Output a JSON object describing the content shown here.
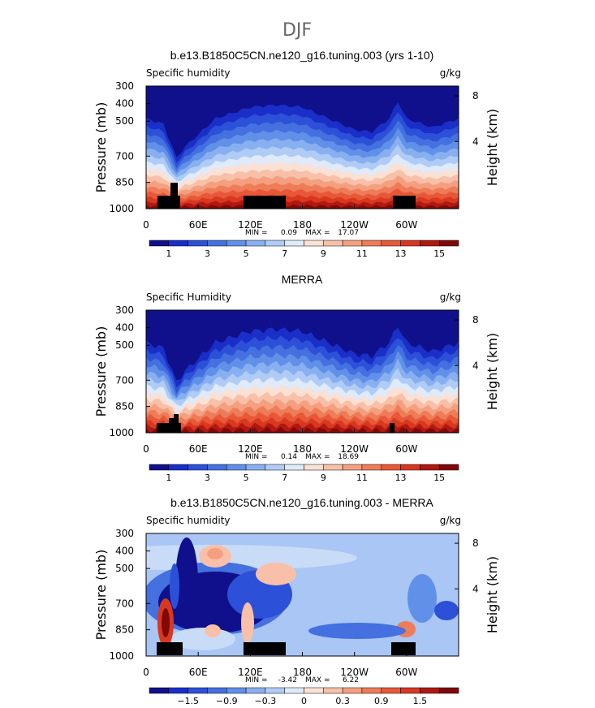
{
  "title": "DJF",
  "chart_data": [
    {
      "type": "contour",
      "title": "b.e13.B1850C5CN.ne120_g16.tuning.003 (yrs 1-10)",
      "left_label": "Specific humidity",
      "right_label": "g/kg",
      "y_label": "Pressure (mb)",
      "y2_label": "Height (km)",
      "xlim": [
        0,
        360
      ],
      "xticks": [
        0,
        {
          "value": 60,
          "label": "60E"
        },
        {
          "value": 120,
          "label": "120E"
        },
        180,
        {
          "value": 240,
          "label": "120W"
        },
        {
          "value": 300,
          "label": "60W"
        }
      ],
      "ylim": [
        1000,
        300
      ],
      "yticks": [
        300,
        400,
        500,
        700,
        850,
        1000
      ],
      "y2ticks": [
        8,
        4
      ],
      "min_label": "MIN =",
      "min": 0.09,
      "max_label": "MAX =",
      "max": 17.07,
      "colorbar_levels": [
        1,
        2,
        3,
        4,
        5,
        6,
        7,
        8,
        9,
        10,
        11,
        12,
        13,
        14,
        15
      ],
      "colorbar_ticks": [
        1,
        3,
        5,
        7,
        9,
        11,
        13,
        15
      ],
      "colors": [
        "#10108c",
        "#1a2ec8",
        "#2c50d8",
        "#4470e0",
        "#6090e8",
        "#88b0f0",
        "#b0ccf6",
        "#dfeafa",
        "#fbe0d4",
        "#f8c0a8",
        "#f4a080",
        "#ee7c58",
        "#e85838",
        "#d83820",
        "#b01810",
        "#800808"
      ]
    },
    {
      "type": "contour",
      "title": "MERRA",
      "left_label": "Specific Humidity",
      "right_label": "g/kg",
      "y_label": "Pressure (mb)",
      "y2_label": "Height (km)",
      "xlim": [
        0,
        360
      ],
      "xticks": [
        0,
        {
          "value": 60,
          "label": "60E"
        },
        {
          "value": 120,
          "label": "120E"
        },
        180,
        {
          "value": 240,
          "label": "120W"
        },
        {
          "value": 300,
          "label": "60W"
        }
      ],
      "ylim": [
        1000,
        300
      ],
      "yticks": [
        300,
        400,
        500,
        700,
        850,
        1000
      ],
      "y2ticks": [
        8,
        4
      ],
      "min_label": "MIN =",
      "min": 0.14,
      "max_label": "MAX =",
      "max": 18.69,
      "colorbar_levels": [
        1,
        2,
        3,
        4,
        5,
        6,
        7,
        8,
        9,
        10,
        11,
        12,
        13,
        14,
        15
      ],
      "colorbar_ticks": [
        1,
        3,
        5,
        7,
        9,
        11,
        13,
        15
      ],
      "colors": [
        "#10108c",
        "#1a2ec8",
        "#2c50d8",
        "#4470e0",
        "#6090e8",
        "#88b0f0",
        "#b0ccf6",
        "#dfeafa",
        "#fbe0d4",
        "#f8c0a8",
        "#f4a080",
        "#ee7c58",
        "#e85838",
        "#d83820",
        "#b01810",
        "#800808"
      ]
    },
    {
      "type": "contour-diff",
      "title": "b.e13.B1850C5CN.ne120_g16.tuning.003 - MERRA",
      "left_label": "Specific humidity",
      "right_label": "g/kg",
      "y_label": "Pressure (mb)",
      "y2_label": "Height (km)",
      "xlim": [
        0,
        360
      ],
      "xticks": [
        0,
        {
          "value": 60,
          "label": "60E"
        },
        {
          "value": 120,
          "label": "120E"
        },
        180,
        {
          "value": 240,
          "label": "120W"
        },
        {
          "value": 300,
          "label": "60W"
        }
      ],
      "ylim": [
        1000,
        300
      ],
      "yticks": [
        300,
        400,
        500,
        700,
        850,
        1000
      ],
      "y2ticks": [
        8,
        4
      ],
      "min_label": "MIN =",
      "min": -3.42,
      "max_label": "MAX =",
      "max": 6.22,
      "colorbar_levels": [
        -1.8,
        -1.5,
        -1.2,
        -0.9,
        -0.6,
        -0.3,
        -0.1,
        0,
        0.1,
        0.3,
        0.6,
        0.9,
        1.2,
        1.5,
        1.8
      ],
      "colorbar_ticks": [
        {
          "value": -1.5,
          "label": "−1.5"
        },
        {
          "value": -0.9,
          "label": "−0.9"
        },
        {
          "value": -0.3,
          "label": "−0.3"
        },
        0,
        0.3,
        0.9,
        1.5
      ],
      "colors": [
        "#10108c",
        "#1a2ec8",
        "#2c50d8",
        "#4470e0",
        "#6090e8",
        "#88b0f0",
        "#b0ccf6",
        "#dfeafa",
        "#fbe0d4",
        "#f8c0a8",
        "#f4a080",
        "#ee7c58",
        "#e85838",
        "#d83820",
        "#b01810",
        "#800808"
      ]
    }
  ]
}
